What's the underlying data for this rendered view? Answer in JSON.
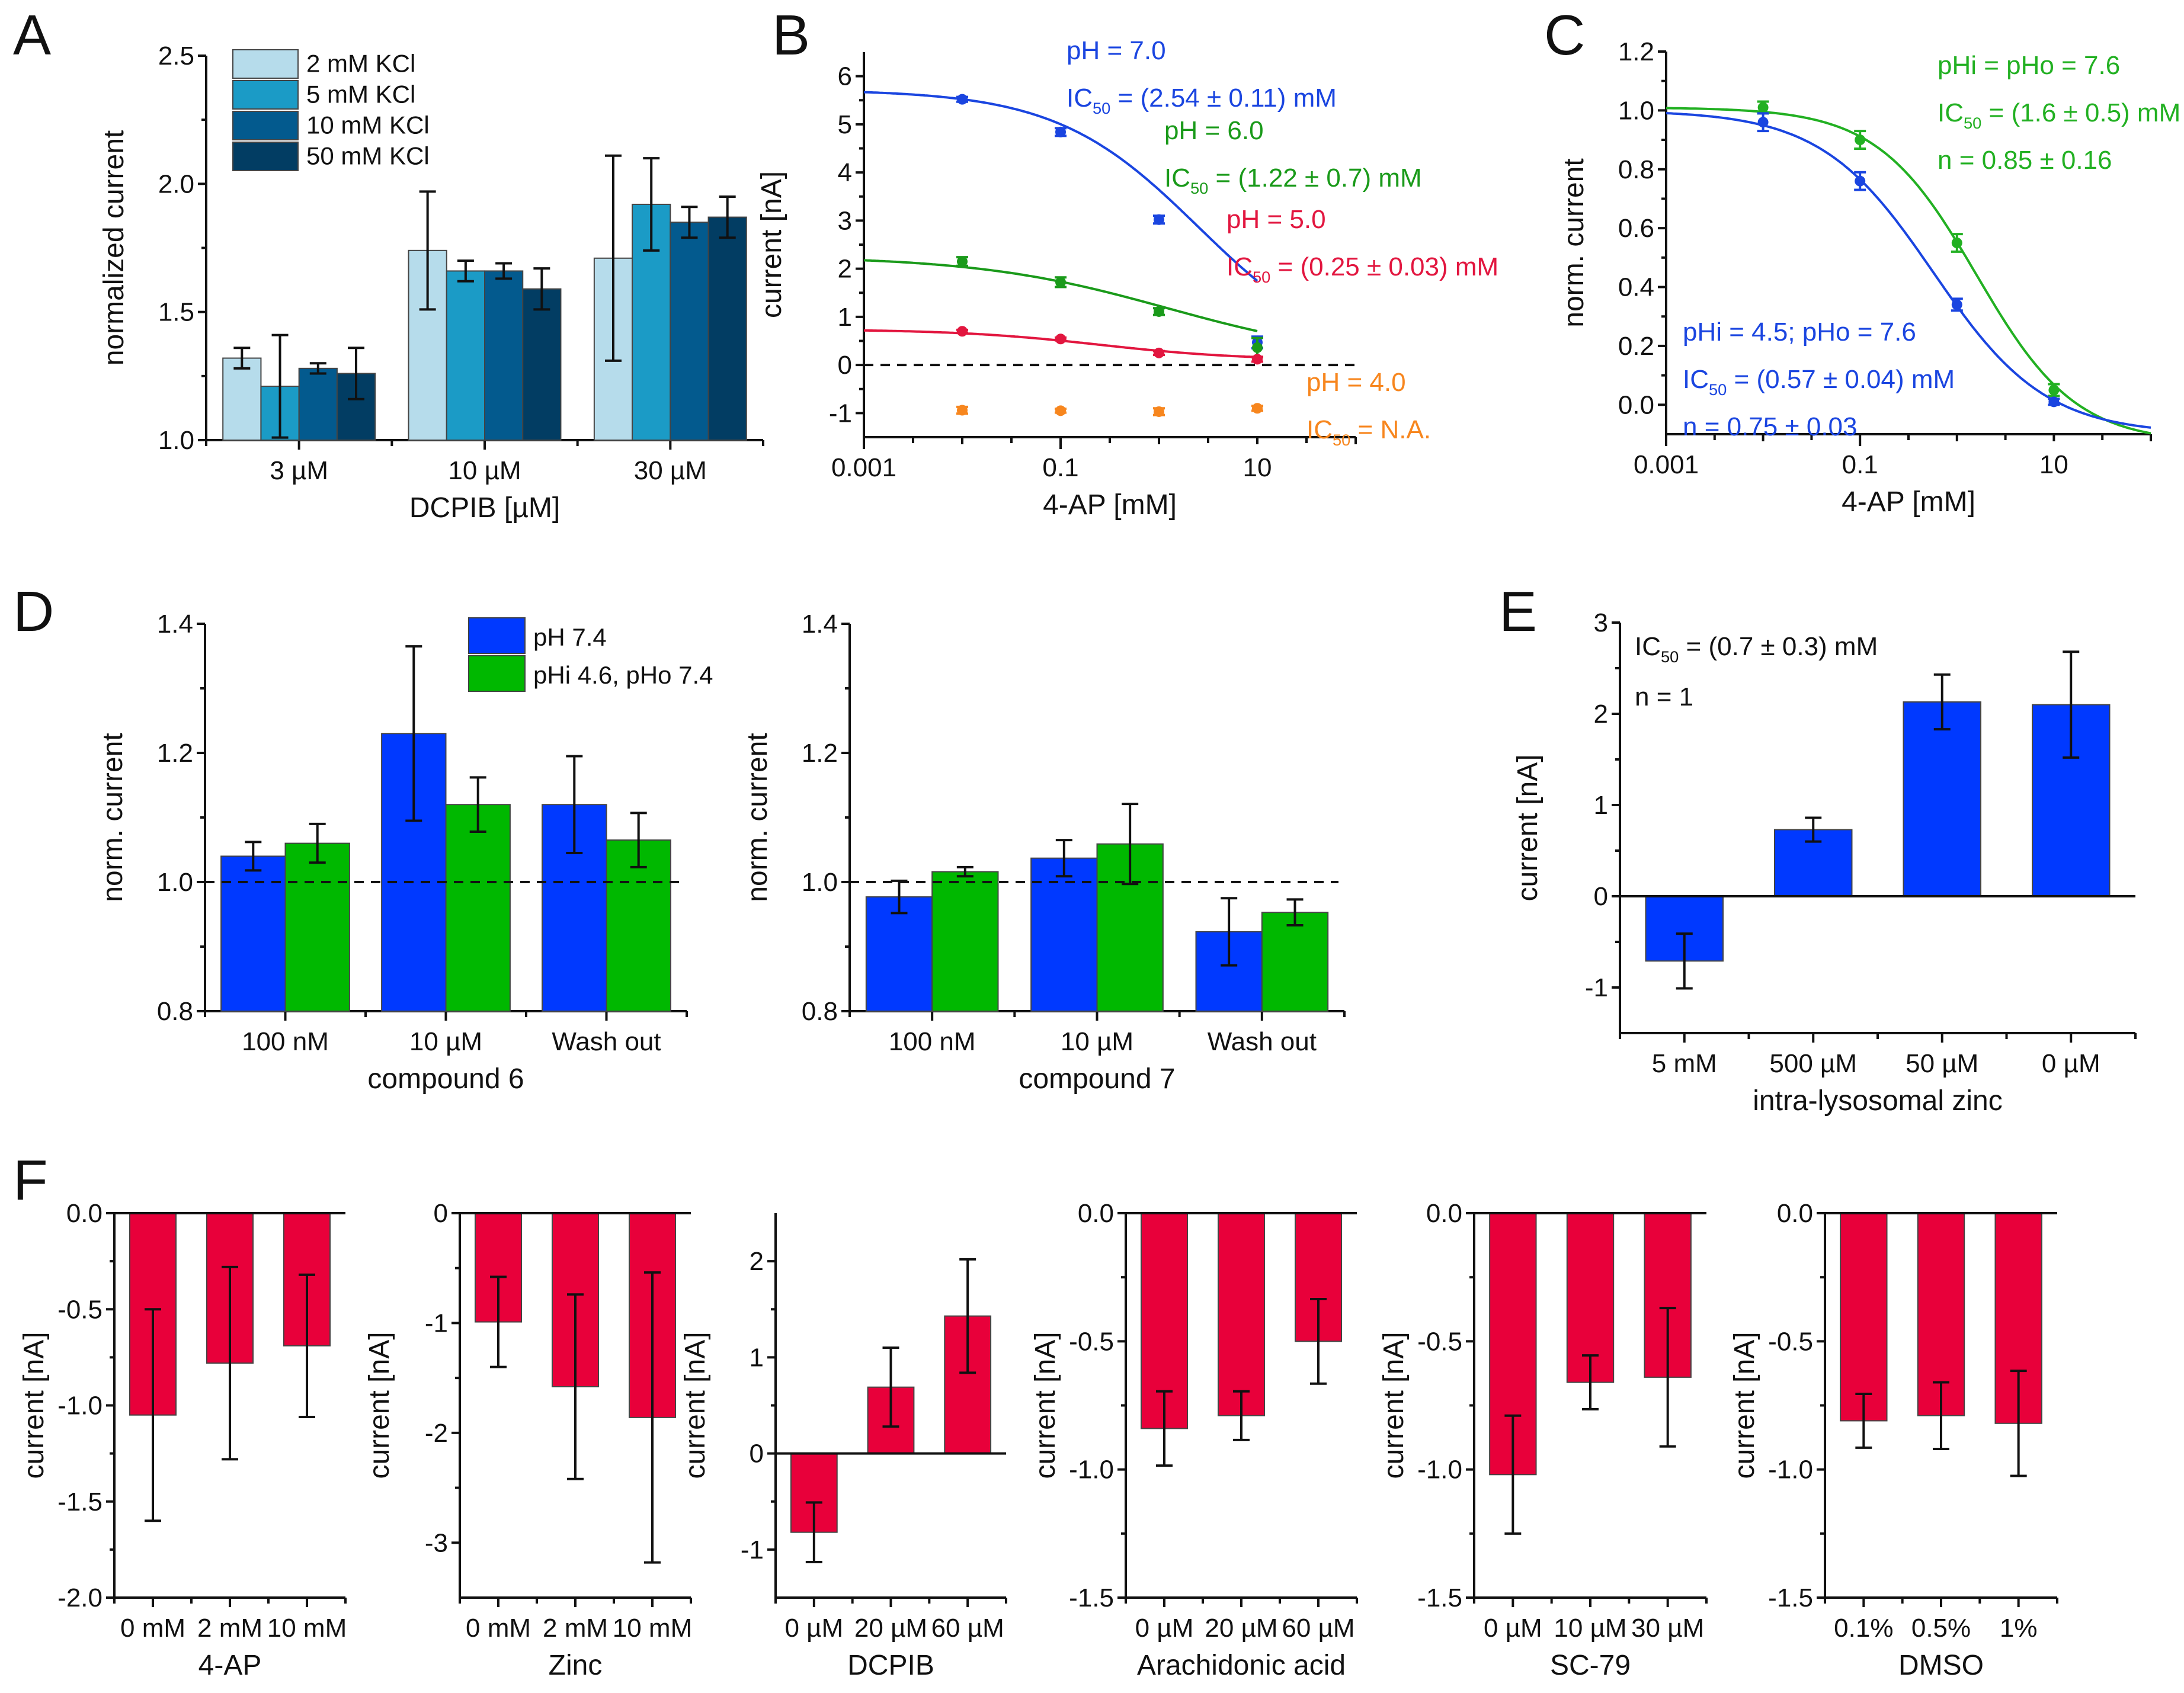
{
  "figure": {
    "panel_letters": [
      "A",
      "B",
      "C",
      "D",
      "E",
      "F"
    ]
  },
  "chart_data": [
    {
      "id": "A",
      "type": "bar",
      "xlabel": "DCPIB [µM]",
      "ylabel": "normalized current",
      "ylim": [
        1.0,
        2.5
      ],
      "yticks": [
        1.0,
        1.5,
        2.0,
        2.5
      ],
      "ytick_labels": [
        "1.0",
        "1.5",
        "2.0",
        "2.5"
      ],
      "categories": [
        "3 µM",
        "10 µM",
        "30 µM"
      ],
      "legend_position": "top-left",
      "series": [
        {
          "name": "2 mM KCl",
          "color": "#b6dceb",
          "values": [
            1.32,
            1.74,
            1.71
          ],
          "errors": [
            0.04,
            0.23,
            0.4
          ]
        },
        {
          "name": "5 mM KCl",
          "color": "#1b9bc6",
          "values": [
            1.21,
            1.66,
            1.92
          ],
          "errors": [
            0.2,
            0.04,
            0.18
          ]
        },
        {
          "name": "10 mM KCl",
          "color": "#035a8e",
          "values": [
            1.28,
            1.66,
            1.85
          ],
          "errors": [
            0.02,
            0.03,
            0.06
          ]
        },
        {
          "name": "50 mM KCl",
          "color": "#023d63",
          "values": [
            1.26,
            1.59,
            1.87
          ],
          "errors": [
            0.1,
            0.08,
            0.08
          ]
        }
      ]
    },
    {
      "id": "B",
      "type": "line",
      "xscale": "log",
      "xlabel": "4-AP [mM]",
      "ylabel": "current [nA]",
      "xlim": [
        0.001,
        100
      ],
      "ylim": [
        -1.5,
        6.5
      ],
      "xticks": [
        0.001,
        0.1,
        10
      ],
      "xtick_labels": [
        "0.001",
        "0.1",
        "10"
      ],
      "yticks": [
        -1,
        0,
        1,
        2,
        3,
        4,
        5,
        6
      ],
      "ytick_labels": [
        "-1",
        "0",
        "1",
        "2",
        "3",
        "4",
        "5",
        "6"
      ],
      "reference_line": 0,
      "series": [
        {
          "name": "pH = 7.0",
          "annotation": [
            "pH = 7.0",
            "IC50 = (2.54 ± 0.11) mM"
          ],
          "color": "#1a45e0",
          "x": [
            0.01,
            0.1,
            1,
            10
          ],
          "y": [
            5.52,
            4.84,
            3.02,
            0.47
          ],
          "errors": [
            0.05,
            0.08,
            0.08,
            0.12
          ],
          "fit": {
            "top": 5.72,
            "bottom": 0.0,
            "ic50": 2.54,
            "hill": 0.6
          }
        },
        {
          "name": "pH = 6.0",
          "annotation": [
            "pH = 6.0",
            "IC50 = (1.22 ± 0.7) mM"
          ],
          "color": "#1a9a1a",
          "x": [
            0.01,
            0.1,
            1,
            10
          ],
          "y": [
            2.15,
            1.72,
            1.11,
            0.36
          ],
          "errors": [
            0.09,
            0.1,
            0.07,
            0.2
          ],
          "fit": {
            "top": 2.26,
            "bottom": 0.1,
            "ic50": 1.22,
            "hill": 0.45
          }
        },
        {
          "name": "pH = 5.0",
          "annotation": [
            "pH = 5.0",
            "IC50 = (0.25 ± 0.03) mM"
          ],
          "color": "#e2163f",
          "x": [
            0.01,
            0.1,
            1,
            10
          ],
          "y": [
            0.7,
            0.54,
            0.25,
            0.12
          ],
          "errors": [
            0.03,
            0.03,
            0.04,
            0.05
          ],
          "fit": {
            "top": 0.74,
            "bottom": 0.1,
            "ic50": 0.25,
            "hill": 0.6
          }
        },
        {
          "name": "pH = 4.0",
          "annotation": [
            "pH = 4.0",
            "IC50 = N.A."
          ],
          "color": "#f7861e",
          "x": [
            0.01,
            0.1,
            1,
            10
          ],
          "y": [
            -0.94,
            -0.95,
            -0.97,
            -0.9
          ],
          "errors": [
            0.07,
            0.04,
            0.07,
            0.05
          ],
          "fit": null
        }
      ]
    },
    {
      "id": "C",
      "type": "line",
      "xscale": "log",
      "xlabel": "4-AP [mM]",
      "ylabel": "norm. current",
      "xlim": [
        0.001,
        100
      ],
      "ylim": [
        -0.1,
        1.2
      ],
      "xticks": [
        0.001,
        0.1,
        10
      ],
      "xtick_labels": [
        "0.001",
        "0.1",
        "10"
      ],
      "yticks": [
        0.0,
        0.2,
        0.4,
        0.6,
        0.8,
        1.0,
        1.2
      ],
      "ytick_labels": [
        "0.0",
        "0.2",
        "0.4",
        "0.6",
        "0.8",
        "1.0",
        "1.2"
      ],
      "series": [
        {
          "name": "pHi = pHo = 7.6",
          "annotation": [
            "pHi = pHo = 7.6",
            "IC50 = (1.6 ± 0.5) mM",
            "n = 0.85 ± 0.16"
          ],
          "color": "#22b022",
          "x": [
            0.01,
            0.1,
            1,
            10
          ],
          "y": [
            1.01,
            0.9,
            0.55,
            0.05
          ],
          "errors": [
            0.02,
            0.03,
            0.03,
            0.02
          ],
          "fit": {
            "top": 1.01,
            "bottom": -0.13,
            "ic50": 1.6,
            "hill": 0.85
          }
        },
        {
          "name": "pHi = 4.5; pHo = 7.6",
          "annotation": [
            "pHi = 4.5; pHo = 7.6",
            "IC50 = (0.57 ± 0.04) mM",
            "n = 0.75 ± 0.03"
          ],
          "color": "#1a45e0",
          "x": [
            0.01,
            0.1,
            1,
            10
          ],
          "y": [
            0.96,
            0.76,
            0.34,
            0.01
          ],
          "errors": [
            0.03,
            0.03,
            0.02,
            0.01
          ],
          "fit": {
            "top": 1.0,
            "bottom": -0.1,
            "ic50": 0.57,
            "hill": 0.75
          }
        }
      ]
    },
    {
      "id": "D1",
      "type": "bar",
      "xlabel": "compound 6",
      "ylabel": "norm. current",
      "ylim": [
        0.8,
        1.4
      ],
      "yticks": [
        0.8,
        1.0,
        1.2,
        1.4
      ],
      "ytick_labels": [
        "0.8",
        "1.0",
        "1.2",
        "1.4"
      ],
      "reference_line": 1.0,
      "categories": [
        "100 nM",
        "10 µM",
        "Wash out"
      ],
      "legend_position": "top-right",
      "series": [
        {
          "name": "pH 7.4",
          "color": "#0039ff",
          "values": [
            1.04,
            1.23,
            1.12
          ],
          "errors": [
            0.022,
            0.135,
            0.075
          ]
        },
        {
          "name": "pHi 4.6, pHo 7.4",
          "color": "#00b800",
          "values": [
            1.06,
            1.12,
            1.065
          ],
          "errors": [
            0.03,
            0.042,
            0.042
          ]
        }
      ]
    },
    {
      "id": "D2",
      "type": "bar",
      "xlabel": "compound 7",
      "ylabel": "norm. current",
      "ylim": [
        0.8,
        1.4
      ],
      "yticks": [
        0.8,
        1.0,
        1.2,
        1.4
      ],
      "ytick_labels": [
        "0.8",
        "1.0",
        "1.2",
        "1.4"
      ],
      "reference_line": 1.0,
      "categories": [
        "100 nM",
        "10 µM",
        "Wash out"
      ],
      "series": [
        {
          "name": "pH 7.4",
          "color": "#0039ff",
          "values": [
            0.977,
            1.037,
            0.923
          ],
          "errors": [
            0.025,
            0.028,
            0.052
          ]
        },
        {
          "name": "pHi 4.6, pHo 7.4",
          "color": "#00b800",
          "values": [
            1.016,
            1.059,
            0.953
          ],
          "errors": [
            0.007,
            0.062,
            0.02
          ]
        }
      ]
    },
    {
      "id": "E",
      "type": "bar",
      "xlabel": "intra-lysosomal zinc",
      "ylabel": "current [nA]",
      "ylim": [
        -1.5,
        3
      ],
      "yticks": [
        -1,
        0,
        1,
        2,
        3
      ],
      "ytick_labels": [
        "-1",
        "0",
        "1",
        "2",
        "3"
      ],
      "categories": [
        "5 mM",
        "500 µM",
        "50 µM",
        "0 µM"
      ],
      "annotation": [
        "IC50 = (0.7 ± 0.3) mM",
        "n = 1"
      ],
      "series": [
        {
          "name": "current",
          "color": "#0039ff",
          "values": [
            -0.71,
            0.73,
            2.13,
            2.1
          ],
          "errors": [
            0.3,
            0.13,
            0.3,
            0.58
          ]
        }
      ]
    },
    {
      "id": "F1",
      "type": "bar",
      "xlabel": "4-AP",
      "ylabel": "current [nA]",
      "ylim": [
        -2.0,
        0.0
      ],
      "yticks": [
        -2.0,
        -1.5,
        -1.0,
        -0.5,
        0.0
      ],
      "ytick_labels": [
        "-2.0",
        "-1.5",
        "-1.0",
        "-0.5",
        "0.0"
      ],
      "categories": [
        "0 mM",
        "2 mM",
        "10 mM"
      ],
      "series": [
        {
          "name": "current",
          "color": "#e8003a",
          "values": [
            -1.05,
            -0.78,
            -0.69
          ],
          "errors": [
            0.55,
            0.5,
            0.37
          ]
        }
      ]
    },
    {
      "id": "F2",
      "type": "bar",
      "xlabel": "Zinc",
      "ylabel": "current [nA]",
      "ylim": [
        -3.5,
        0
      ],
      "yticks": [
        -3,
        -2,
        -1,
        0
      ],
      "ytick_labels": [
        "-3",
        "-2",
        "-1",
        "0"
      ],
      "categories": [
        "0 mM",
        "2 mM",
        "10 mM"
      ],
      "series": [
        {
          "name": "current",
          "color": "#e8003a",
          "values": [
            -0.99,
            -1.58,
            -1.86
          ],
          "errors": [
            0.41,
            0.84,
            1.32
          ]
        }
      ]
    },
    {
      "id": "F3",
      "type": "bar",
      "xlabel": "DCPIB",
      "ylabel": "current [nA]",
      "ylim": [
        -1.5,
        2.5
      ],
      "yticks": [
        -1,
        0,
        1,
        2
      ],
      "ytick_labels": [
        "-1",
        "0",
        "1",
        "2"
      ],
      "categories": [
        "0 µM",
        "20 µM",
        "60 µM"
      ],
      "series": [
        {
          "name": "current",
          "color": "#e8003a",
          "values": [
            -0.82,
            0.69,
            1.43
          ],
          "errors": [
            0.31,
            0.41,
            0.59
          ]
        }
      ]
    },
    {
      "id": "F4",
      "type": "bar",
      "xlabel": "Arachidonic acid",
      "ylabel": "current [nA]",
      "ylim": [
        -1.5,
        0.0
      ],
      "yticks": [
        -1.5,
        -1.0,
        -0.5,
        0.0
      ],
      "ytick_labels": [
        "-1.5",
        "-1.0",
        "-0.5",
        "0.0"
      ],
      "categories": [
        "0 µM",
        "20 µM",
        "60 µM"
      ],
      "series": [
        {
          "name": "current",
          "color": "#e8003a",
          "values": [
            -0.84,
            -0.79,
            -0.5
          ],
          "errors": [
            0.145,
            0.095,
            0.165
          ]
        }
      ]
    },
    {
      "id": "F5",
      "type": "bar",
      "xlabel": "SC-79",
      "ylabel": "current [nA]",
      "ylim": [
        -1.5,
        0.0
      ],
      "yticks": [
        -1.5,
        -1.0,
        -0.5,
        0.0
      ],
      "ytick_labels": [
        "-1.5",
        "-1.0",
        "-0.5",
        "0.0"
      ],
      "categories": [
        "0 µM",
        "10 µM",
        "30 µM"
      ],
      "series": [
        {
          "name": "current",
          "color": "#e8003a",
          "values": [
            -1.02,
            -0.66,
            -0.64
          ],
          "errors": [
            0.23,
            0.105,
            0.27
          ]
        }
      ]
    },
    {
      "id": "F6",
      "type": "bar",
      "xlabel": "DMSO",
      "ylabel": "current [nA]",
      "ylim": [
        -1.5,
        0.0
      ],
      "yticks": [
        -1.5,
        -1.0,
        -0.5,
        0.0
      ],
      "ytick_labels": [
        "-1.5",
        "-1.0",
        "-0.5",
        "0.0"
      ],
      "categories": [
        "0.1%",
        "0.5%",
        "1%"
      ],
      "series": [
        {
          "name": "current",
          "color": "#e8003a",
          "values": [
            -0.81,
            -0.79,
            -0.82
          ],
          "errors": [
            0.105,
            0.13,
            0.205
          ]
        }
      ]
    }
  ]
}
